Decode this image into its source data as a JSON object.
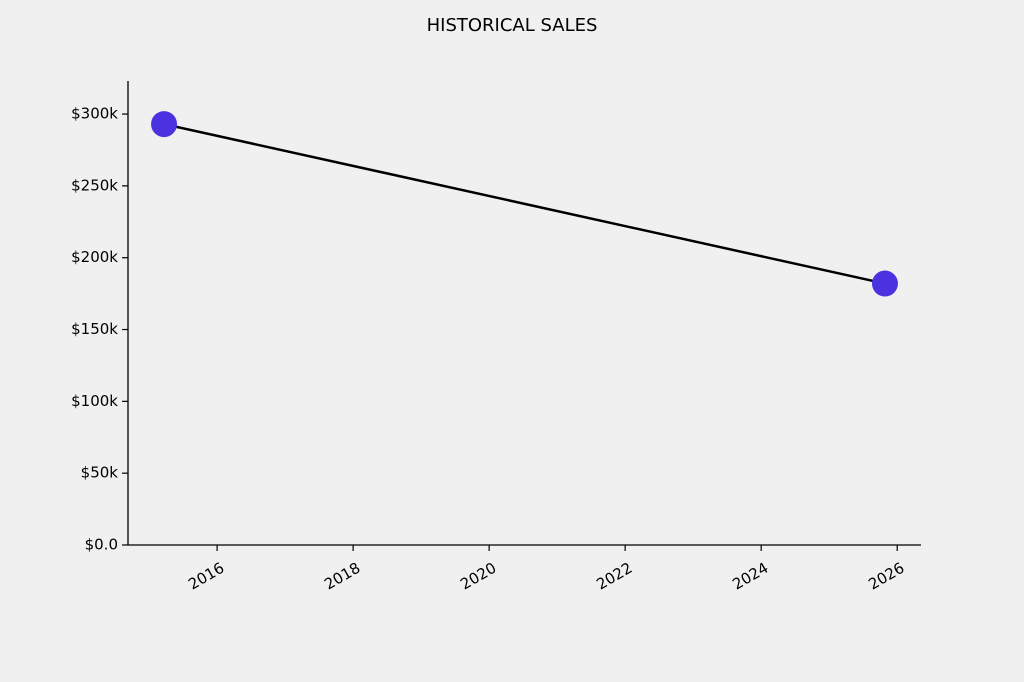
{
  "chart_data": {
    "type": "line",
    "title": "HISTORICAL SALES",
    "x": [
      2015.22,
      2025.82
    ],
    "values": [
      293000,
      182000
    ],
    "line_color": "#000000",
    "marker_color": "#4b32e0",
    "xlim": [
      2014.69,
      2026.35
    ],
    "xticks": [
      2016,
      2018,
      2020,
      2022,
      2024,
      2026
    ],
    "ylim": [
      0,
      323000
    ],
    "yticks": [
      {
        "value": 0,
        "label": "$0.0"
      },
      {
        "value": 50000,
        "label": "$50k"
      },
      {
        "value": 100000,
        "label": "$100k"
      },
      {
        "value": 150000,
        "label": "$150k"
      },
      {
        "value": 200000,
        "label": "$200k"
      },
      {
        "value": 250000,
        "label": "$250k"
      },
      {
        "value": 300000,
        "label": "$300k"
      }
    ],
    "grid": false
  }
}
